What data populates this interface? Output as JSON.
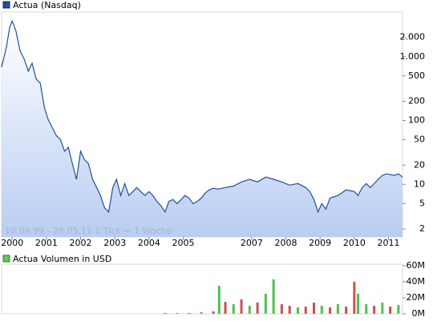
{
  "chart_data": [
    {
      "type": "line",
      "title": "Actua (Nasdaq)",
      "color": "#1f4f9e",
      "fill_color": "#b9cdf2",
      "log_y": true,
      "annotation": "10.09.99 - 28.05.11   1 Tick = 1 Woche",
      "xlim": [
        1999.69,
        2011.41
      ],
      "xticks": [
        2000,
        2001,
        2002,
        2003,
        2004,
        2005,
        2007,
        2008,
        2009,
        2010,
        2011
      ],
      "ylim": [
        1.5,
        5000
      ],
      "yticks": [
        {
          "value": 2000,
          "label": "2.000"
        },
        {
          "value": 1000,
          "label": "1.000"
        },
        500,
        200,
        100,
        50,
        20,
        10,
        5,
        2
      ],
      "x": [
        1999.69,
        1999.83,
        1999.93,
        2000.0,
        2000.11,
        2000.23,
        2000.35,
        2000.47,
        2000.58,
        2000.7,
        2000.82,
        2000.94,
        2001.05,
        2001.17,
        2001.29,
        2001.41,
        2001.53,
        2001.64,
        2001.76,
        2001.88,
        2002.0,
        2002.11,
        2002.23,
        2002.35,
        2002.47,
        2002.58,
        2002.7,
        2002.82,
        2002.94,
        2003.05,
        2003.17,
        2003.29,
        2003.41,
        2003.53,
        2003.64,
        2003.76,
        2003.88,
        2004.0,
        2004.11,
        2004.23,
        2004.35,
        2004.47,
        2004.58,
        2004.7,
        2004.82,
        2004.94,
        2005.05,
        2005.17,
        2005.29,
        2005.41,
        2005.53,
        2005.64,
        2005.76,
        2005.88,
        2006.0,
        2006.23,
        2006.47,
        2006.7,
        2006.94,
        2007.17,
        2007.41,
        2007.64,
        2007.88,
        2008.11,
        2008.35,
        2008.58,
        2008.7,
        2008.82,
        2008.94,
        2009.05,
        2009.17,
        2009.29,
        2009.52,
        2009.76,
        2010.0,
        2010.11,
        2010.23,
        2010.35,
        2010.47,
        2010.7,
        2010.82,
        2010.94,
        2011.17,
        2011.29,
        2011.41
      ],
      "values": [
        686,
        1413,
        2917,
        3600,
        2520,
        1230,
        915,
        590,
        790,
        445,
        385,
        161,
        104,
        78,
        58,
        50,
        33,
        38,
        21,
        12,
        33,
        24.5,
        21,
        12,
        8.9,
        6.7,
        4.3,
        3.7,
        8.9,
        12,
        6.7,
        10.3,
        6.7,
        7.7,
        8.9,
        7.7,
        6.7,
        7.7,
        6.7,
        5.4,
        4.6,
        3.7,
        5.4,
        5.8,
        5.0,
        5.8,
        6.7,
        6.1,
        5.0,
        5.4,
        6.1,
        7.3,
        8.2,
        8.7,
        8.4,
        8.9,
        9.4,
        10.9,
        12,
        10.9,
        13,
        12,
        10.9,
        9.7,
        10.3,
        8.9,
        7.7,
        5.8,
        3.7,
        5.0,
        4.1,
        6.1,
        6.7,
        8.2,
        7.7,
        6.7,
        8.9,
        10.3,
        8.9,
        12,
        13.8,
        14.6,
        13.8,
        14.6,
        13
      ]
    },
    {
      "type": "bar",
      "title": "Actua Volumen in USD",
      "color": "#5cc85c",
      "xlim": [
        1999.69,
        2011.41
      ],
      "ylim": [
        0,
        62000000
      ],
      "yticks": [
        {
          "value": 60000000,
          "label": "60M"
        },
        {
          "value": 40000000,
          "label": "40M"
        },
        {
          "value": 20000000,
          "label": "20M"
        },
        {
          "value": 0,
          "label": "0M"
        }
      ],
      "x": [
        2004.47,
        2004.82,
        2005.17,
        2005.53,
        2005.88,
        2006.05,
        2006.23,
        2006.47,
        2006.7,
        2006.94,
        2007.17,
        2007.41,
        2007.64,
        2007.88,
        2008.11,
        2008.35,
        2008.58,
        2008.82,
        2009.05,
        2009.29,
        2009.52,
        2009.76,
        2010.0,
        2010.11,
        2010.35,
        2010.58,
        2010.82,
        2011.05,
        2011.29
      ],
      "values": [
        1000000,
        1000000,
        1000000,
        2000000,
        3000000,
        35000000,
        15000000,
        12000000,
        18000000,
        10000000,
        14000000,
        25000000,
        43000000,
        12000000,
        10000000,
        8000000,
        9000000,
        14000000,
        10000000,
        8000000,
        12000000,
        9000000,
        40000000,
        25000000,
        12000000,
        10000000,
        14000000,
        9000000,
        11000000
      ],
      "colors": [
        "#d05050",
        "#50c050",
        "#d05050",
        "#50c050",
        "#d05050",
        "#50c050",
        "#d05050",
        "#50c050",
        "#d05050",
        "#50c050",
        "#d05050",
        "#50c050",
        "#50c050",
        "#d05050",
        "#d05050",
        "#50c050",
        "#d05050",
        "#d05050",
        "#50c050",
        "#d05050",
        "#50c050",
        "#d05050",
        "#d05050",
        "#50c050",
        "#50c050",
        "#d05050",
        "#50c050",
        "#d05050",
        "#50c050"
      ]
    }
  ]
}
